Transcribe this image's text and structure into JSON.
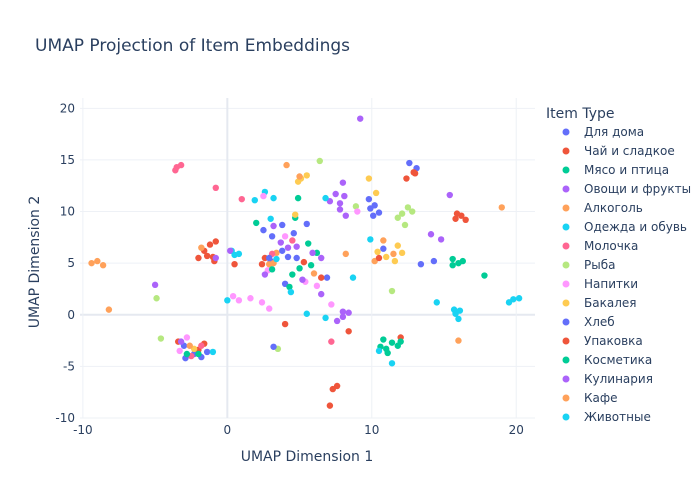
{
  "chart_data": {
    "type": "scatter",
    "title": "UMAP Projection of Item Embeddings",
    "xlabel": "UMAP Dimension 1",
    "ylabel": "UMAP Dimension 2",
    "xlim": [
      -10.2,
      21.3
    ],
    "ylim": [
      -10,
      21
    ],
    "xticks": [
      -10,
      0,
      10,
      20
    ],
    "yticks": [
      -10,
      -5,
      0,
      5,
      10,
      15,
      20
    ],
    "grid": true,
    "legend_title": "Item Type",
    "legend_position": "right",
    "series": [
      {
        "name": "Для дома",
        "color": "#636efa",
        "points": [
          [
            10.2,
            10.6
          ],
          [
            10.5,
            9.9
          ],
          [
            9.8,
            11.2
          ],
          [
            12.6,
            14.7
          ],
          [
            13.1,
            14.2
          ],
          [
            2.5,
            8.2
          ],
          [
            3.1,
            7.6
          ],
          [
            14.3,
            5.2
          ],
          [
            -2.3,
            -3.8
          ],
          [
            -1.8,
            -4.1
          ],
          [
            4.2,
            5.6
          ],
          [
            3.8,
            8.7
          ],
          [
            6.9,
            3.6
          ],
          [
            -3.0,
            -3.0
          ],
          [
            10.8,
            6.4
          ],
          [
            4.8,
            5.5
          ],
          [
            3.0,
            5.2
          ],
          [
            -1.4,
            -3.6
          ]
        ]
      },
      {
        "name": "Чай и сладкое",
        "color": "#ef553b",
        "points": [
          [
            -1.2,
            6.8
          ],
          [
            -1.6,
            6.2
          ],
          [
            -0.8,
            7.1
          ],
          [
            -1.0,
            5.6
          ],
          [
            15.8,
            9.3
          ],
          [
            16.2,
            9.6
          ],
          [
            16.5,
            9.2
          ],
          [
            13.0,
            13.7
          ],
          [
            12.4,
            13.2
          ],
          [
            -3.4,
            -2.6
          ],
          [
            -2.0,
            -3.4
          ],
          [
            -1.6,
            -2.8
          ],
          [
            7.3,
            -7.2
          ],
          [
            7.1,
            -8.8
          ],
          [
            7.6,
            -6.9
          ],
          [
            0.5,
            4.9
          ],
          [
            2.6,
            5.5
          ]
        ]
      },
      {
        "name": "Мясо и птица",
        "color": "#00cc96",
        "points": [
          [
            11.4,
            -2.7
          ],
          [
            11.0,
            -3.3
          ],
          [
            11.8,
            -3.0
          ],
          [
            10.8,
            -2.4
          ],
          [
            4.5,
            3.9
          ],
          [
            5.0,
            4.5
          ],
          [
            16.0,
            5.0
          ],
          [
            15.6,
            4.8
          ],
          [
            16.3,
            5.2
          ],
          [
            17.8,
            3.8
          ],
          [
            4.7,
            9.4
          ],
          [
            -2.0,
            -3.8
          ],
          [
            5.8,
            4.8
          ],
          [
            6.2,
            6.0
          ]
        ]
      },
      {
        "name": "Овощи и фрукты",
        "color": "#ab63fa",
        "points": [
          [
            7.5,
            11.7
          ],
          [
            7.1,
            11.0
          ],
          [
            8.0,
            12.8
          ],
          [
            7.8,
            10.2
          ],
          [
            8.2,
            9.6
          ],
          [
            3.7,
            7.0
          ],
          [
            4.2,
            6.5
          ],
          [
            3.2,
            8.6
          ],
          [
            8.0,
            -0.2
          ],
          [
            8.4,
            0.2
          ],
          [
            7.6,
            -0.6
          ],
          [
            9.2,
            19.0
          ],
          [
            14.8,
            7.3
          ],
          [
            15.4,
            11.6
          ],
          [
            -5.0,
            2.9
          ],
          [
            6.5,
            2.0
          ],
          [
            5.9,
            6.0
          ]
        ]
      },
      {
        "name": "Алкоголь",
        "color": "#ffa15a",
        "points": [
          [
            -9.4,
            5.0
          ],
          [
            -9.0,
            5.2
          ],
          [
            -8.6,
            4.8
          ],
          [
            -8.2,
            0.5
          ],
          [
            19.0,
            10.4
          ],
          [
            16.0,
            -2.5
          ],
          [
            4.1,
            14.5
          ],
          [
            2.9,
            4.9
          ],
          [
            3.4,
            6.0
          ],
          [
            10.2,
            5.2
          ]
        ]
      },
      {
        "name": "Одежда и обувь",
        "color": "#19d3f3",
        "points": [
          [
            19.8,
            1.5
          ],
          [
            19.5,
            1.2
          ],
          [
            20.2,
            1.6
          ],
          [
            15.8,
            0.2
          ],
          [
            16.0,
            -0.4
          ],
          [
            15.7,
            0.5
          ],
          [
            2.6,
            11.9
          ],
          [
            3.2,
            11.3
          ],
          [
            3.0,
            9.3
          ],
          [
            0.8,
            5.9
          ],
          [
            0.3,
            6.2
          ],
          [
            5.5,
            0.1
          ],
          [
            6.8,
            -0.3
          ],
          [
            11.4,
            -4.7
          ],
          [
            9.9,
            7.3
          ],
          [
            8.7,
            3.6
          ],
          [
            1.9,
            11.1
          ],
          [
            14.5,
            1.2
          ]
        ]
      },
      {
        "name": "Молочка",
        "color": "#ff6692",
        "points": [
          [
            -3.5,
            14.3
          ],
          [
            -3.2,
            14.5
          ],
          [
            -3.6,
            14.0
          ],
          [
            -0.8,
            12.3
          ],
          [
            7.2,
            -2.6
          ],
          [
            -2.5,
            -4.0
          ],
          [
            -1.8,
            -3.0
          ],
          [
            3.1,
            5.9
          ],
          [
            1.0,
            11.2
          ],
          [
            4.5,
            7.2
          ]
        ]
      },
      {
        "name": "Рыба",
        "color": "#b6e880",
        "points": [
          [
            12.1,
            9.8
          ],
          [
            12.5,
            10.4
          ],
          [
            11.8,
            9.4
          ],
          [
            12.8,
            10.0
          ],
          [
            11.4,
            2.3
          ],
          [
            6.4,
            14.9
          ],
          [
            -4.9,
            1.6
          ],
          [
            -4.6,
            -2.3
          ],
          [
            8.9,
            10.5
          ],
          [
            3.5,
            -3.3
          ],
          [
            12.3,
            8.7
          ]
        ]
      },
      {
        "name": "Напитки",
        "color": "#ff97ff",
        "points": [
          [
            0.8,
            1.4
          ],
          [
            1.6,
            1.6
          ],
          [
            2.4,
            1.2
          ],
          [
            2.9,
            0.6
          ],
          [
            0.4,
            1.8
          ],
          [
            2.8,
            4.3
          ],
          [
            5.4,
            3.2
          ],
          [
            6.2,
            2.8
          ],
          [
            2.5,
            11.5
          ],
          [
            7.2,
            1.0
          ],
          [
            -2.8,
            -2.2
          ],
          [
            -3.3,
            -3.5
          ],
          [
            4.0,
            7.6
          ],
          [
            9.0,
            10.0
          ]
        ]
      },
      {
        "name": "Бакалея",
        "color": "#fecb52",
        "points": [
          [
            11.0,
            5.6
          ],
          [
            11.6,
            5.2
          ],
          [
            12.1,
            6.0
          ],
          [
            10.4,
            6.1
          ],
          [
            11.8,
            6.7
          ],
          [
            5.1,
            13.2
          ],
          [
            5.5,
            13.5
          ],
          [
            4.9,
            12.9
          ],
          [
            9.8,
            13.2
          ],
          [
            10.3,
            11.8
          ],
          [
            -2.3,
            -3.3
          ],
          [
            4.7,
            9.7
          ]
        ]
      },
      {
        "name": "Хлеб",
        "color": "#636efa",
        "points": [
          [
            4.6,
            7.9
          ],
          [
            5.5,
            8.8
          ],
          [
            3.8,
            6.2
          ],
          [
            2.9,
            5.5
          ],
          [
            9.9,
            10.3
          ],
          [
            10.1,
            9.6
          ],
          [
            13.4,
            4.9
          ],
          [
            -2.9,
            -4.2
          ],
          [
            3.2,
            -3.1
          ],
          [
            4.0,
            3.0
          ]
        ]
      },
      {
        "name": "Упаковка",
        "color": "#ef553b",
        "points": [
          [
            -1.4,
            5.7
          ],
          [
            -0.9,
            5.2
          ],
          [
            -2.0,
            5.5
          ],
          [
            12.9,
            13.8
          ],
          [
            15.9,
            9.8
          ],
          [
            2.4,
            4.9
          ],
          [
            4.0,
            -0.9
          ],
          [
            6.5,
            3.6
          ],
          [
            8.4,
            -1.6
          ],
          [
            10.5,
            5.5
          ],
          [
            12.0,
            -2.2
          ],
          [
            5.3,
            5.1
          ]
        ]
      },
      {
        "name": "Косметика",
        "color": "#00cc96",
        "points": [
          [
            11.1,
            -3.7
          ],
          [
            10.6,
            -3.1
          ],
          [
            12.0,
            -2.6
          ],
          [
            15.6,
            5.4
          ],
          [
            4.9,
            11.3
          ],
          [
            3.1,
            4.4
          ],
          [
            4.3,
            2.7
          ],
          [
            5.6,
            6.9
          ],
          [
            -2.8,
            -3.8
          ],
          [
            2.0,
            8.9
          ]
        ]
      },
      {
        "name": "Кулинария",
        "color": "#ab63fa",
        "points": [
          [
            8.1,
            11.5
          ],
          [
            7.8,
            10.8
          ],
          [
            6.5,
            5.5
          ],
          [
            5.2,
            3.4
          ],
          [
            8.0,
            0.3
          ],
          [
            -0.8,
            5.5
          ],
          [
            0.2,
            6.2
          ],
          [
            14.1,
            7.8
          ],
          [
            -3.2,
            -2.6
          ],
          [
            4.8,
            6.6
          ],
          [
            2.6,
            3.9
          ]
        ]
      },
      {
        "name": "Кафе",
        "color": "#ffa15a",
        "points": [
          [
            5.0,
            13.4
          ],
          [
            10.8,
            7.2
          ],
          [
            11.5,
            5.9
          ],
          [
            -1.8,
            6.5
          ],
          [
            -2.6,
            -3.0
          ],
          [
            8.2,
            5.9
          ],
          [
            3.2,
            5.0
          ],
          [
            6.0,
            4.0
          ]
        ]
      },
      {
        "name": "Животные",
        "color": "#19d3f3",
        "points": [
          [
            15.8,
            0.1
          ],
          [
            16.1,
            0.4
          ],
          [
            0.5,
            5.8
          ],
          [
            3.4,
            5.4
          ],
          [
            6.8,
            11.3
          ],
          [
            10.5,
            -3.5
          ],
          [
            0.0,
            1.4
          ],
          [
            4.4,
            2.2
          ],
          [
            -1.0,
            -3.6
          ]
        ]
      }
    ]
  }
}
